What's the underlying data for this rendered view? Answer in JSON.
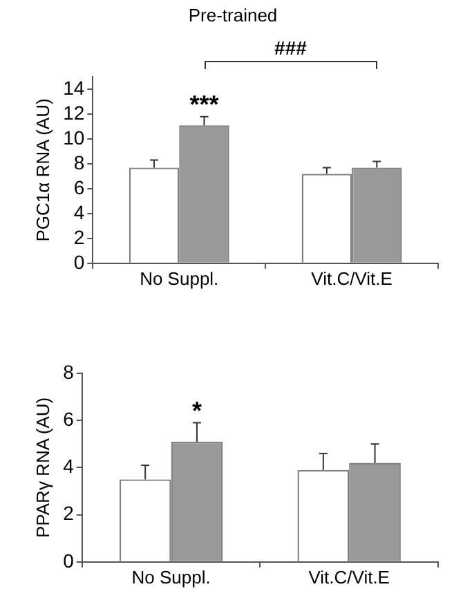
{
  "chart_data": [
    {
      "type": "bar",
      "title": "Pre-trained",
      "ylabel": "PGC1α RNA (AU)",
      "categories": [
        "No Suppl.",
        "Vit.C/Vit.E"
      ],
      "series": [
        {
          "color": "#ffffff",
          "values": [
            7.7,
            7.2
          ],
          "errors": [
            0.6,
            0.5
          ]
        },
        {
          "color": "#999999",
          "values": [
            11.1,
            7.7
          ],
          "errors": [
            0.7,
            0.5
          ]
        }
      ],
      "ylim": [
        0,
        15
      ],
      "yticks": [
        0,
        2,
        4,
        6,
        8,
        10,
        12,
        14
      ],
      "grid": false,
      "legend": false,
      "annotations": [
        "***",
        "###"
      ]
    },
    {
      "type": "bar",
      "ylabel": "PPARγ RNA (AU)",
      "categories": [
        "No Suppl.",
        "Vit.C/Vit.E"
      ],
      "series": [
        {
          "color": "#ffffff",
          "values": [
            3.5,
            3.9
          ],
          "errors": [
            0.6,
            0.7
          ]
        },
        {
          "color": "#999999",
          "values": [
            5.1,
            4.2
          ],
          "errors": [
            0.8,
            0.8
          ]
        }
      ],
      "ylim": [
        0,
        8
      ],
      "yticks": [
        0,
        2,
        4,
        6,
        8
      ],
      "grid": false,
      "legend": false,
      "annotations": [
        "*"
      ]
    }
  ]
}
